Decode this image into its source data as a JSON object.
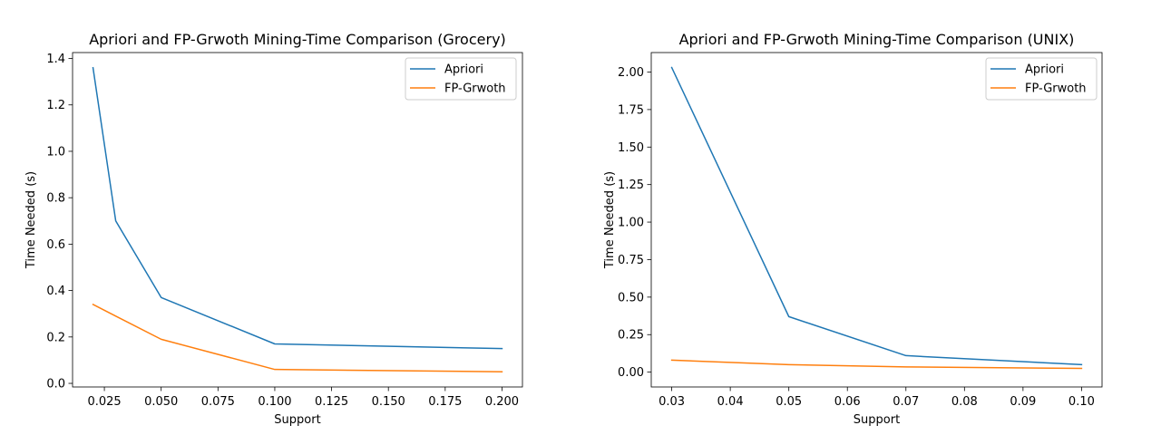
{
  "chart_data": [
    {
      "type": "line",
      "title": "Apriori and FP-Grwoth Mining-Time Comparison (Grocery)",
      "xlabel": "Support",
      "ylabel": "Time Needed (s)",
      "xlim": [
        0.011,
        0.209
      ],
      "ylim": [
        -0.0155,
        1.4255
      ],
      "xticks": [
        0.025,
        0.05,
        0.075,
        0.1,
        0.125,
        0.15,
        0.175,
        0.2
      ],
      "xtick_labels": [
        "0.025",
        "0.050",
        "0.075",
        "0.100",
        "0.125",
        "0.150",
        "0.175",
        "0.200"
      ],
      "yticks": [
        0.0,
        0.2,
        0.4,
        0.6,
        0.8,
        1.0,
        1.2,
        1.4
      ],
      "ytick_labels": [
        "0.0",
        "0.2",
        "0.4",
        "0.6",
        "0.8",
        "1.0",
        "1.2",
        "1.4"
      ],
      "grid": false,
      "legend_position": "top-right",
      "series": [
        {
          "name": "Apriori",
          "color": "#1f77b4",
          "x": [
            0.02,
            0.03,
            0.05,
            0.1,
            0.2
          ],
          "values": [
            1.36,
            0.7,
            0.37,
            0.17,
            0.15
          ]
        },
        {
          "name": "FP-Grwoth",
          "color": "#ff7f0e",
          "x": [
            0.02,
            0.03,
            0.05,
            0.1,
            0.2
          ],
          "values": [
            0.34,
            0.29,
            0.19,
            0.06,
            0.05
          ]
        }
      ]
    },
    {
      "type": "line",
      "title": "Apriori and FP-Grwoth Mining-Time Comparison (UNIX)",
      "xlabel": "Support",
      "ylabel": "Time Needed (s)",
      "xlim": [
        0.0265,
        0.1035
      ],
      "ylim": [
        -0.0988,
        2.1298
      ],
      "xticks": [
        0.03,
        0.04,
        0.05,
        0.06,
        0.07,
        0.08,
        0.09,
        0.1
      ],
      "xtick_labels": [
        "0.03",
        "0.04",
        "0.05",
        "0.06",
        "0.07",
        "0.08",
        "0.09",
        "0.10"
      ],
      "yticks": [
        0.0,
        0.25,
        0.5,
        0.75,
        1.0,
        1.25,
        1.5,
        1.75,
        2.0
      ],
      "ytick_labels": [
        "0.00",
        "0.25",
        "0.50",
        "0.75",
        "1.00",
        "1.25",
        "1.50",
        "1.75",
        "2.00"
      ],
      "grid": false,
      "legend_position": "top-right",
      "series": [
        {
          "name": "Apriori",
          "color": "#1f77b4",
          "x": [
            0.03,
            0.05,
            0.07,
            0.1
          ],
          "values": [
            2.03,
            0.37,
            0.11,
            0.05
          ]
        },
        {
          "name": "FP-Grwoth",
          "color": "#ff7f0e",
          "x": [
            0.03,
            0.05,
            0.07,
            0.1
          ],
          "values": [
            0.08,
            0.05,
            0.035,
            0.025
          ]
        }
      ]
    }
  ]
}
